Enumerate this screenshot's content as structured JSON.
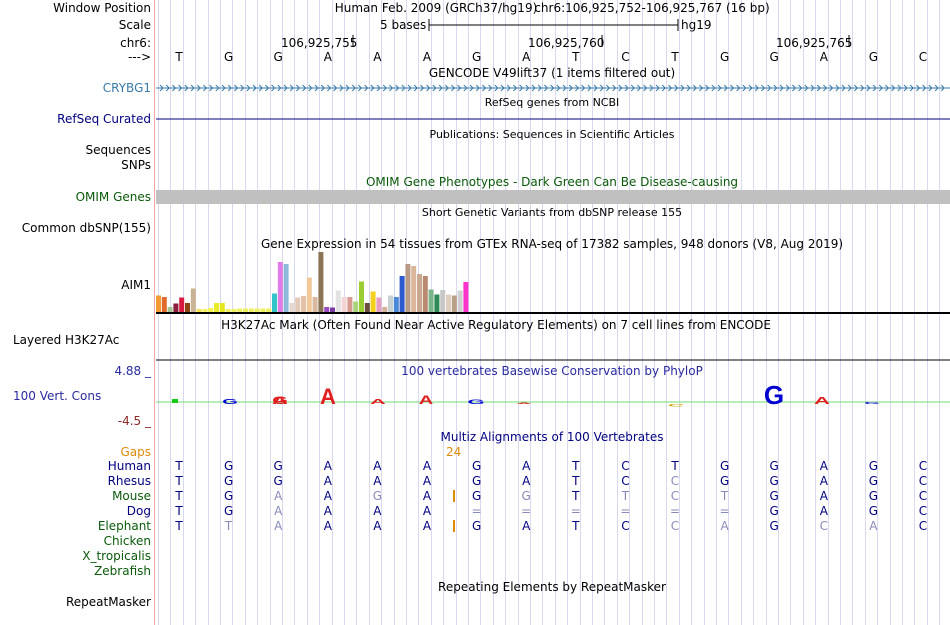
{
  "header": {
    "window_position_label": "Window Position",
    "scale_label": "Scale",
    "chrom_label": "chr6:",
    "arrow_label": "--->",
    "assembly": "Human Feb. 2009 (GRCh37/hg19)",
    "position": "chr6:106,925,752-106,925,767 (16 bp)",
    "scale_text": "5 bases",
    "scale_db": "hg19",
    "coord_ticks": [
      "106,925,755",
      "106,925,760",
      "106,925,765"
    ]
  },
  "bases": [
    "T",
    "G",
    "G",
    "A",
    "A",
    "A",
    "G",
    "A",
    "T",
    "C",
    "T",
    "G",
    "G",
    "A",
    "G",
    "C"
  ],
  "tracks": {
    "gencode_title": "GENCODE V49lift37 (1 items filtered out)",
    "gene_label": "CRYBG1",
    "refseq_title": "RefSeq genes from NCBI",
    "refseq_label": "RefSeq Curated",
    "publications_title": "Publications: Sequences in Scientific Articles",
    "sequences_label": "Sequences",
    "snps_label": "SNPs",
    "omim_title": "OMIM Gene Phenotypes - Dark Green Can Be Disease-causing",
    "omim_label": "OMIM Genes",
    "dbsnp_title": "Short Genetic Variants from dbSNP release 155",
    "dbsnp_label": "Common dbSNP(155)",
    "gtex_title": "Gene Expression in 54 tissues from GTEx RNA-seq of 17382 samples, 948 donors (V8, Aug 2019)",
    "gtex_gene": "AIM1",
    "h3k27_title": "H3K27Ac Mark (Often Found Near Active Regulatory Elements) on 7 cell lines from ENCODE",
    "h3k27_label": "Layered H3K27Ac",
    "phylop_title": "100 vertebrates Basewise Conservation by PhyloP",
    "phylop_label": "100 Vert. Cons",
    "phylop_max": "4.88 _",
    "phylop_min": "-4.5 _",
    "multiz_title": "Multiz Alignments of 100 Vertebrates",
    "gaps_label": "Gaps",
    "gaps_value": "24",
    "repeat_title": "Repeating Elements by RepeatMasker",
    "repeat_label": "RepeatMasker"
  },
  "gtex_values": [
    0.33,
    0.3,
    0.1,
    0.17,
    0.29,
    0.18,
    0.47,
    0.06,
    0.06,
    0.08,
    0.18,
    0.18,
    0.06,
    0.06,
    0.07,
    0.07,
    0.07,
    0.07,
    0.07,
    0.07,
    0.37,
    1.0,
    0.96,
    0.18,
    0.29,
    0.32,
    0.69,
    0.3,
    1.2,
    0.1,
    0.09,
    0.43,
    0.3,
    0.3,
    0.21,
    0.61,
    0.18,
    0.41,
    0.29,
    0.1,
    0.33,
    0.3,
    0.72,
    0.96,
    0.92,
    0.76,
    0.72,
    0.45,
    0.35,
    0.44,
    0.35,
    0.33,
    0.43,
    0.6
  ],
  "gtex_colors": [
    "#f29b34",
    "#e06a2a",
    "#a3c58f",
    "#8b1e3f",
    "#d7193f",
    "#8b4513",
    "#c9b394",
    "#f2e54c",
    "#f6f163",
    "#f5f550",
    "#eaeb2a",
    "#e6e61e",
    "#eef060",
    "#eef060",
    "#eef060",
    "#eef060",
    "#eef060",
    "#eef060",
    "#eef060",
    "#eef060",
    "#30c5c9",
    "#e07be8",
    "#8fb9d8",
    "#e3d7cf",
    "#e3c8b6",
    "#e4c2a8",
    "#f0c89a",
    "#d8b9a0",
    "#8b7355",
    "#9b4ac2",
    "#7b3aa0",
    "#e2e2e2",
    "#f3d3d3",
    "#d69b8e",
    "#a8d37a",
    "#9acd32",
    "#6b4c3b",
    "#f2d01c",
    "#e6a0c4",
    "#d3b39b",
    "#c8d1d1",
    "#4a89d8",
    "#2e5ad0",
    "#b89b85",
    "#d9b59a",
    "#c8a88e",
    "#b98a70",
    "#7ab48a",
    "#2e8b57",
    "#c8c8c8",
    "#e0cfc0",
    "#b8a08a",
    "#cfcfcf",
    "#ff33cc"
  ],
  "multiz": {
    "species": [
      "Human",
      "Rhesus",
      "Mouse",
      "Dog",
      "Elephant",
      "Chicken",
      "X_tropicalis",
      "Zebrafish"
    ],
    "rows": [
      [
        "T",
        "G",
        "G",
        "A",
        "A",
        "A",
        "G",
        "A",
        "T",
        "C",
        "T",
        "G",
        "G",
        "A",
        "G",
        "C"
      ],
      [
        "T",
        "G",
        "G",
        "A",
        "A",
        "A",
        "G",
        "A",
        "T",
        "C",
        "C",
        "G",
        "G",
        "A",
        "G",
        "C"
      ],
      [
        "T",
        "G",
        "A",
        "A",
        "G",
        "A",
        "G",
        "G",
        "T",
        "T",
        "C",
        "T",
        "G",
        "A",
        "G",
        "C"
      ],
      [
        "T",
        "G",
        "A",
        "A",
        "A",
        "A",
        "=",
        "=",
        "=",
        "=",
        "=",
        "=",
        "G",
        "A",
        "G",
        "C"
      ],
      [
        "T",
        "T",
        "A",
        "A",
        "A",
        "A",
        "G",
        "A",
        "T",
        "C",
        "C",
        "A",
        "G",
        "C",
        "A",
        "C"
      ],
      [],
      [],
      []
    ],
    "faded": [
      [],
      [
        10
      ],
      [
        2,
        4,
        7,
        9,
        10,
        11
      ],
      [
        2,
        6,
        7,
        8,
        9,
        10,
        11
      ],
      [
        1,
        2,
        10,
        11,
        13,
        14
      ],
      [],
      [],
      []
    ],
    "insert_marks": [
      {
        "row": 2,
        "after_index": 5
      },
      {
        "row": 4,
        "after_index": 5
      }
    ]
  },
  "colors": {
    "species_green": "#0a5a0a",
    "species_navy": "#000080",
    "gaps_orange": "#e08a0a",
    "crybg1_blue": "#3a7aa8",
    "phylop_navy": "#2a2aa0",
    "phylop_min": "#8b2a2a",
    "omim_gray": "#c0c0c0"
  }
}
